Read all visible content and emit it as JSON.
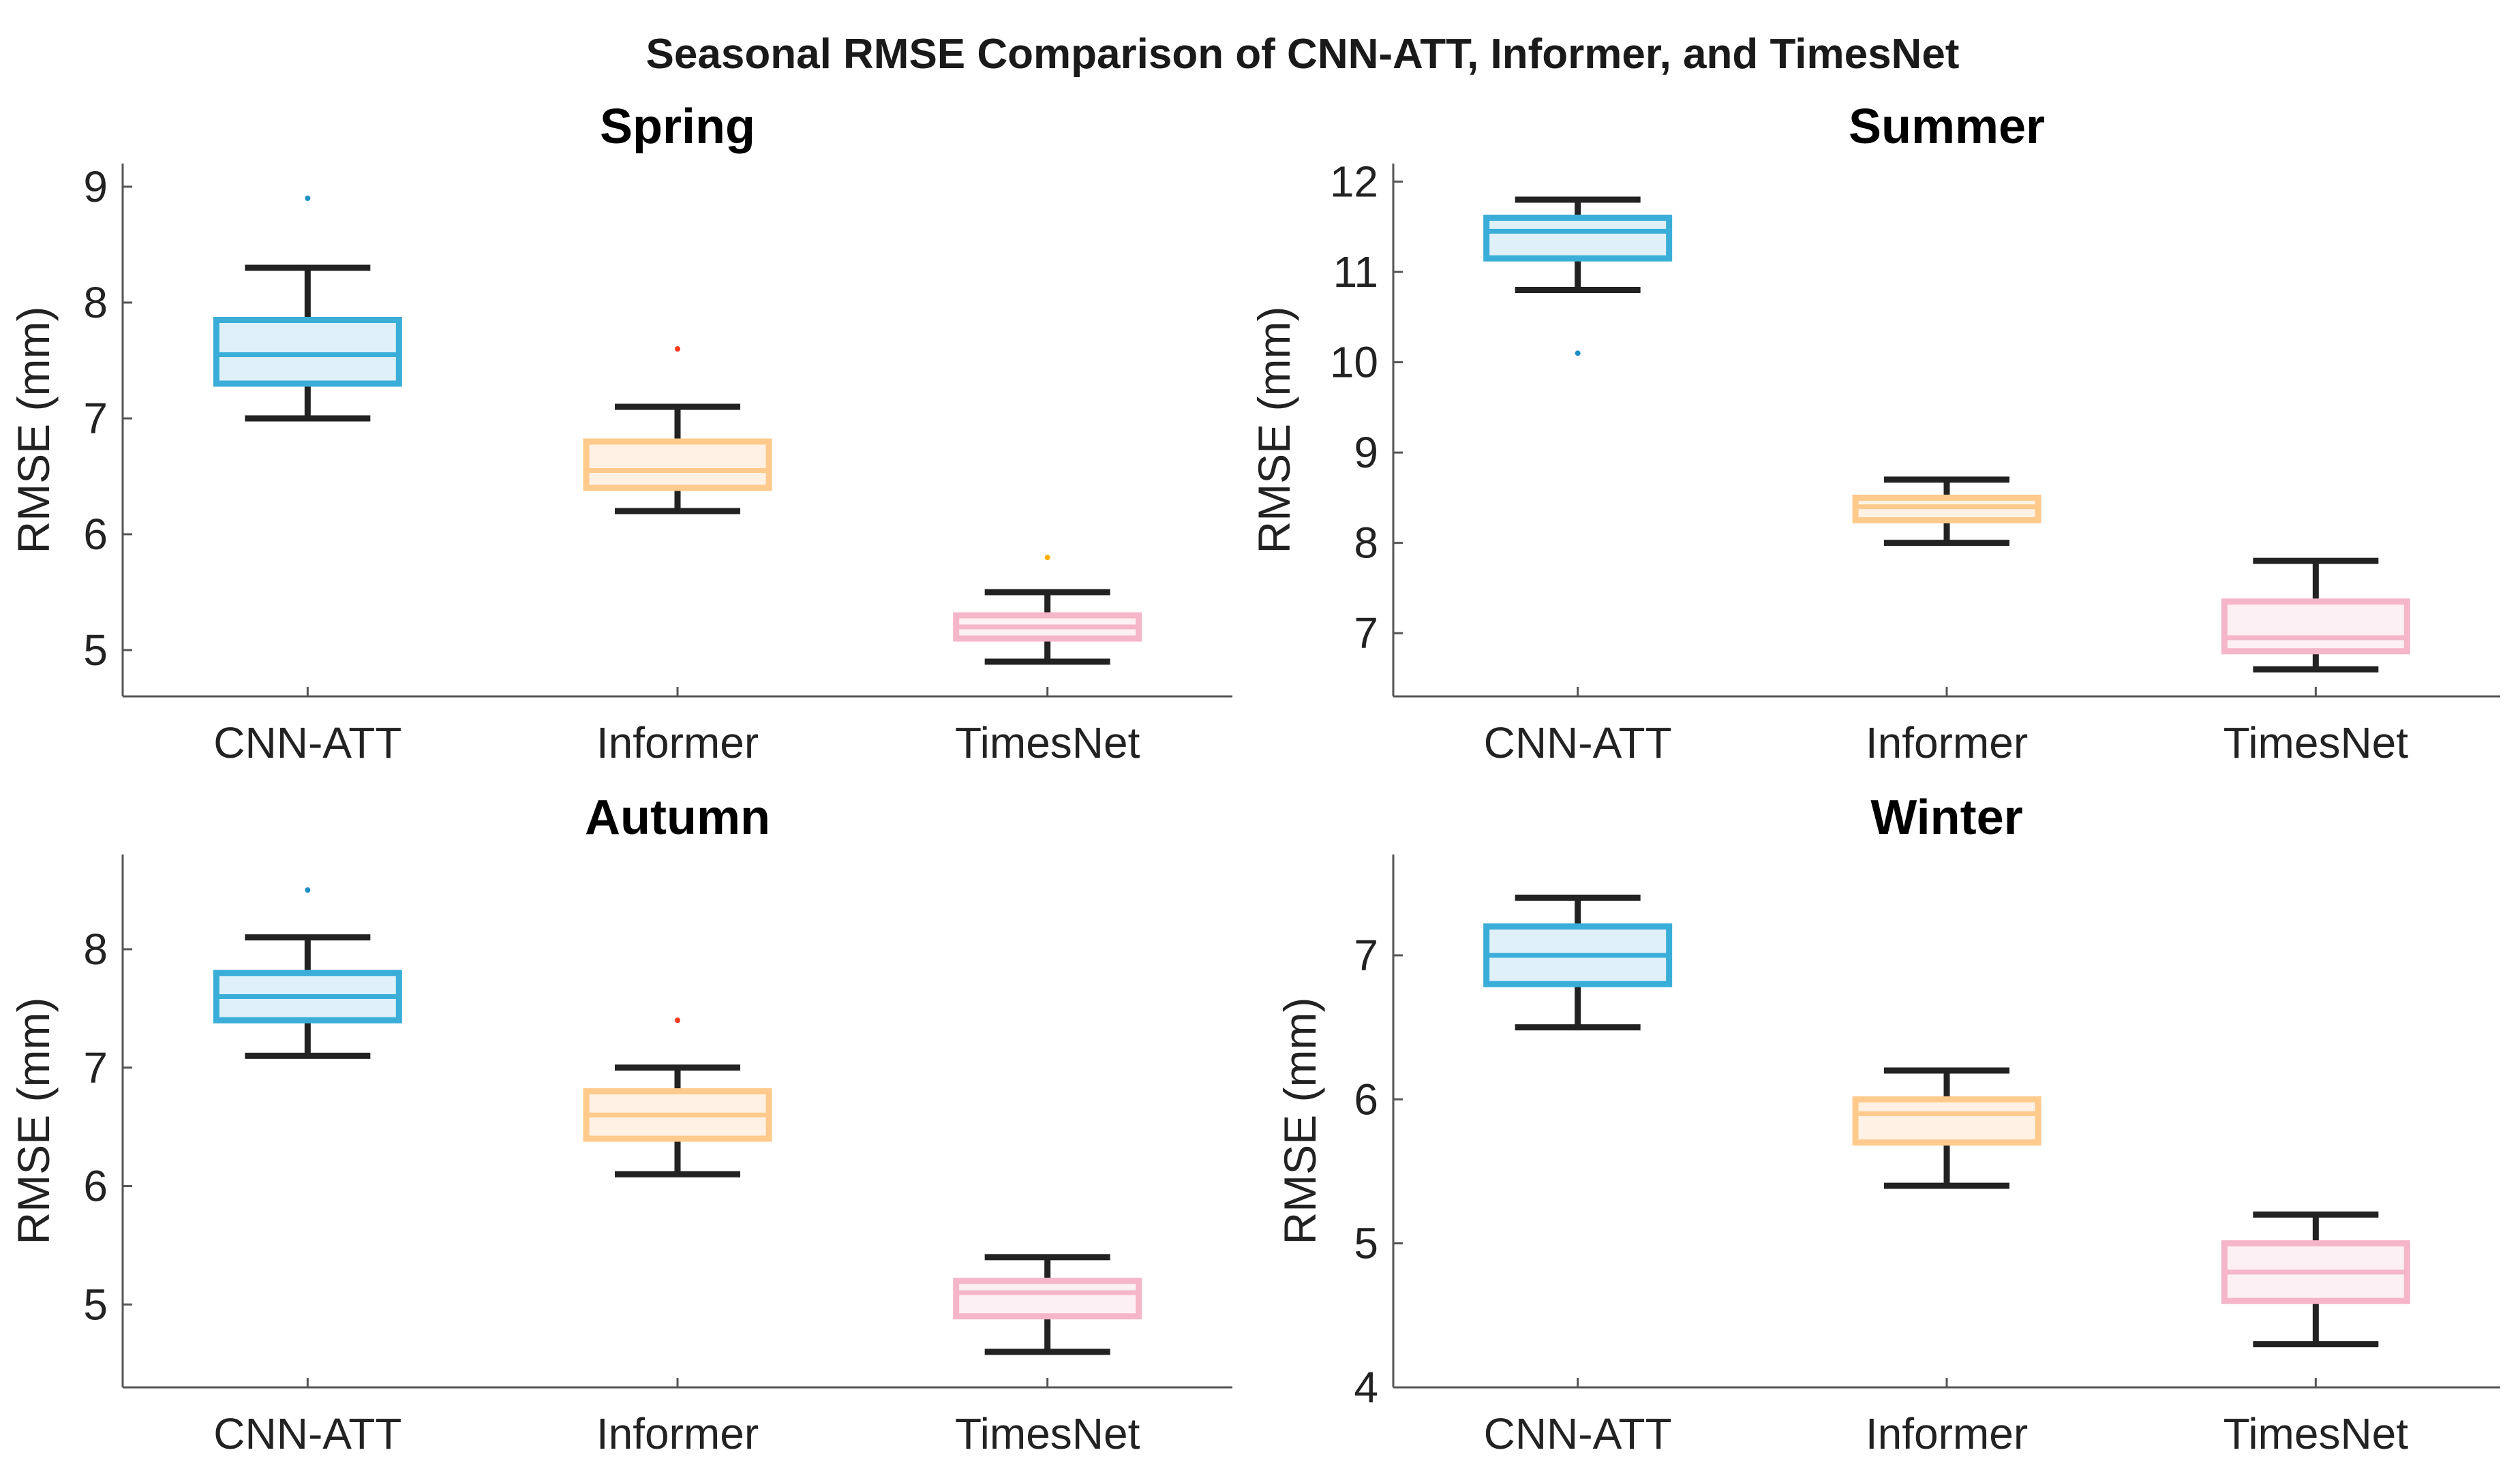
{
  "figure_title": "Seasonal RMSE Comparison of CNN-ATT, Informer, and TimesNet",
  "series_styles": [
    {
      "name": "CNN-ATT",
      "stroke": "#3aaed8",
      "fill": "#dff0f8",
      "outlier": "#1f8fc7"
    },
    {
      "name": "Informer",
      "stroke": "#ffca8c",
      "fill": "#fff2e4",
      "outlier": "#ff3b1f"
    },
    {
      "name": "TimesNet",
      "stroke": "#f4b6c8",
      "fill": "#fdf0f4",
      "outlier": "#ffb000"
    }
  ],
  "chart_data": [
    {
      "type": "box",
      "title": "Spring",
      "ylabel": "RMSE (mm)",
      "xlabel": "",
      "categories": [
        "CNN-ATT",
        "Informer",
        "TimesNet"
      ],
      "ylim": [
        4.6,
        9.2
      ],
      "yticks": [
        5,
        6,
        7,
        8,
        9
      ],
      "boxes": [
        {
          "name": "CNN-ATT",
          "whisker_low": 7.0,
          "q1": 7.3,
          "median": 7.55,
          "q3": 7.85,
          "whisker_high": 8.3,
          "outliers": [
            8.9
          ]
        },
        {
          "name": "Informer",
          "whisker_low": 6.2,
          "q1": 6.4,
          "median": 6.55,
          "q3": 6.8,
          "whisker_high": 7.1,
          "outliers": [
            7.6
          ]
        },
        {
          "name": "TimesNet",
          "whisker_low": 4.9,
          "q1": 5.1,
          "median": 5.2,
          "q3": 5.3,
          "whisker_high": 5.5,
          "outliers": [
            5.8
          ]
        }
      ]
    },
    {
      "type": "box",
      "title": "Summer",
      "ylabel": "RMSE (mm)",
      "xlabel": "",
      "categories": [
        "CNN-ATT",
        "Informer",
        "TimesNet"
      ],
      "ylim": [
        6.3,
        12.2
      ],
      "yticks": [
        7,
        8,
        9,
        10,
        11,
        12
      ],
      "boxes": [
        {
          "name": "CNN-ATT",
          "whisker_low": 10.8,
          "q1": 11.15,
          "median": 11.45,
          "q3": 11.6,
          "whisker_high": 11.8,
          "outliers": [
            10.1
          ]
        },
        {
          "name": "Informer",
          "whisker_low": 8.0,
          "q1": 8.25,
          "median": 8.4,
          "q3": 8.5,
          "whisker_high": 8.7,
          "outliers": []
        },
        {
          "name": "TimesNet",
          "whisker_low": 6.6,
          "q1": 6.8,
          "median": 6.95,
          "q3": 7.35,
          "whisker_high": 7.8,
          "outliers": []
        }
      ]
    },
    {
      "type": "box",
      "title": "Autumn",
      "ylabel": "RMSE (mm)",
      "xlabel": "",
      "categories": [
        "CNN-ATT",
        "Informer",
        "TimesNet"
      ],
      "ylim": [
        4.3,
        8.8
      ],
      "yticks": [
        5,
        6,
        7,
        8
      ],
      "boxes": [
        {
          "name": "CNN-ATT",
          "whisker_low": 7.1,
          "q1": 7.4,
          "median": 7.6,
          "q3": 7.8,
          "whisker_high": 8.1,
          "outliers": [
            8.5
          ]
        },
        {
          "name": "Informer",
          "whisker_low": 6.1,
          "q1": 6.4,
          "median": 6.6,
          "q3": 6.8,
          "whisker_high": 7.0,
          "outliers": [
            7.4
          ]
        },
        {
          "name": "TimesNet",
          "whisker_low": 4.6,
          "q1": 4.9,
          "median": 5.1,
          "q3": 5.2,
          "whisker_high": 5.4,
          "outliers": []
        }
      ]
    },
    {
      "type": "box",
      "title": "Winter",
      "ylabel": "RMSE (mm)",
      "xlabel": "",
      "categories": [
        "CNN-ATT",
        "Informer",
        "TimesNet"
      ],
      "ylim": [
        4.0,
        7.7
      ],
      "yticks": [
        4,
        5,
        6,
        7
      ],
      "boxes": [
        {
          "name": "CNN-ATT",
          "whisker_low": 6.5,
          "q1": 6.8,
          "median": 7.0,
          "q3": 7.2,
          "whisker_high": 7.4,
          "outliers": []
        },
        {
          "name": "Informer",
          "whisker_low": 5.4,
          "q1": 5.7,
          "median": 5.9,
          "q3": 6.0,
          "whisker_high": 6.2,
          "outliers": []
        },
        {
          "name": "TimesNet",
          "whisker_low": 4.3,
          "q1": 4.6,
          "median": 4.8,
          "q3": 5.0,
          "whisker_high": 5.2,
          "outliers": []
        }
      ]
    }
  ]
}
